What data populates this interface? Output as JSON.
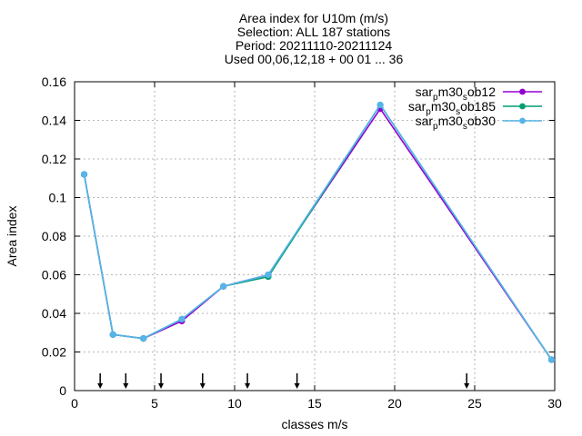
{
  "chart_data": {
    "type": "line",
    "title_lines": [
      "Area index  for U10m (m/s)",
      "Selection: ALL    187 stations",
      "Period: 20211110-20211124",
      "Used 00,06,12,18 + 00 01 ... 36"
    ],
    "xlabel": "classes m/s",
    "ylabel": "Area index",
    "xlim": [
      0,
      30
    ],
    "ylim": [
      0,
      0.16
    ],
    "xticks": [
      0,
      5,
      10,
      15,
      20,
      25,
      30
    ],
    "xtick_labels": [
      "0",
      "5",
      "10",
      "15",
      "20",
      "25",
      "30"
    ],
    "yticks": [
      0,
      0.02,
      0.04,
      0.06,
      0.08,
      0.1,
      0.12,
      0.14,
      0.16
    ],
    "ytick_labels": [
      "0",
      "0.02",
      "0.04",
      "0.06",
      "0.08",
      "0.1",
      "0.12",
      "0.14",
      "0.16"
    ],
    "grid": true,
    "legend_position": "top-right",
    "arrows_x": [
      1.6,
      3.2,
      5.4,
      8.0,
      10.8,
      13.9,
      24.5
    ],
    "series": [
      {
        "name_parts": [
          "sar",
          "p",
          "m30",
          "s",
          "ob12"
        ],
        "color": "#9400d3",
        "x": [
          0.6,
          2.4,
          4.3,
          6.7,
          9.3,
          12.1,
          19.1,
          29.8
        ],
        "y": [
          0.112,
          0.029,
          0.027,
          0.036,
          0.054,
          0.06,
          0.146,
          0.016
        ]
      },
      {
        "name_parts": [
          "sar",
          "p",
          "m30",
          "s",
          "ob185"
        ],
        "color": "#009e73",
        "x": [
          0.6,
          2.4,
          4.3,
          6.7,
          9.3,
          12.1,
          19.1,
          29.8
        ],
        "y": [
          0.112,
          0.029,
          0.027,
          0.037,
          0.054,
          0.059,
          0.148,
          0.016
        ]
      },
      {
        "name_parts": [
          "sar",
          "p",
          "m30",
          "s",
          "ob30"
        ],
        "color": "#56b4e9",
        "x": [
          0.6,
          2.4,
          4.3,
          6.7,
          9.3,
          12.1,
          19.1,
          29.8
        ],
        "y": [
          0.112,
          0.029,
          0.027,
          0.037,
          0.054,
          0.06,
          0.148,
          0.016
        ]
      }
    ]
  }
}
